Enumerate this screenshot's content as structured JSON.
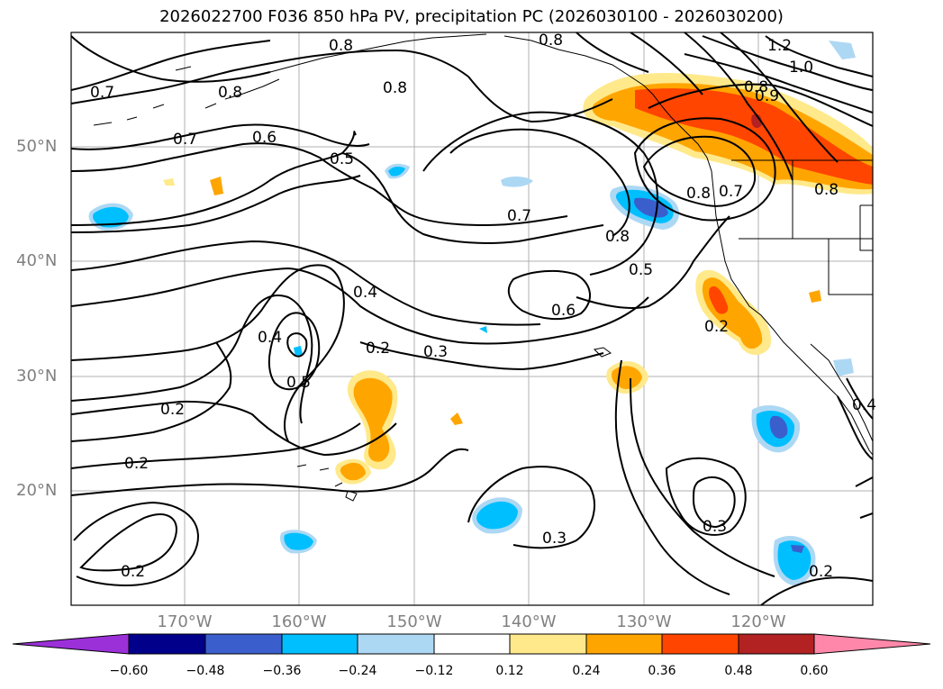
{
  "title": "2026022700 F036 850 hPa PV, precipitation PC (2026030100 - 2026030200)",
  "lat_ticks": [
    "50°N",
    "40°N",
    "30°N",
    "20°N"
  ],
  "lon_ticks": [
    "170°W",
    "160°W",
    "150°W",
    "140°W",
    "130°W",
    "120°W"
  ],
  "colorbar": {
    "ticks": [
      "−0.60",
      "−0.48",
      "−0.36",
      "−0.24",
      "−0.12",
      "0.12",
      "0.24",
      "0.36",
      "0.48",
      "0.60"
    ],
    "colors": [
      "#9b30d9",
      "#00008b",
      "#3a5fcd",
      "#00bfff",
      "#add8f4",
      "#ffffff",
      "#ffe98a",
      "#ffa500",
      "#ff4500",
      "#b22222",
      "#ff88aa"
    ]
  },
  "contour_labels": [
    "0.8",
    "0.8",
    "0.7",
    "0.8",
    "0.8",
    "0.7",
    "0.6",
    "0.5",
    "0.7",
    "0.8",
    "0.8",
    "0.7",
    "0.5",
    "0.6",
    "0.4",
    "0.4",
    "0.5",
    "0.2",
    "0.3",
    "0.2",
    "0.2",
    "0.2",
    "0.3",
    "0.3",
    "0.2",
    "0.2",
    "0.4",
    "0.9",
    "0.8",
    "1.0",
    "1.2",
    "0.8"
  ]
}
